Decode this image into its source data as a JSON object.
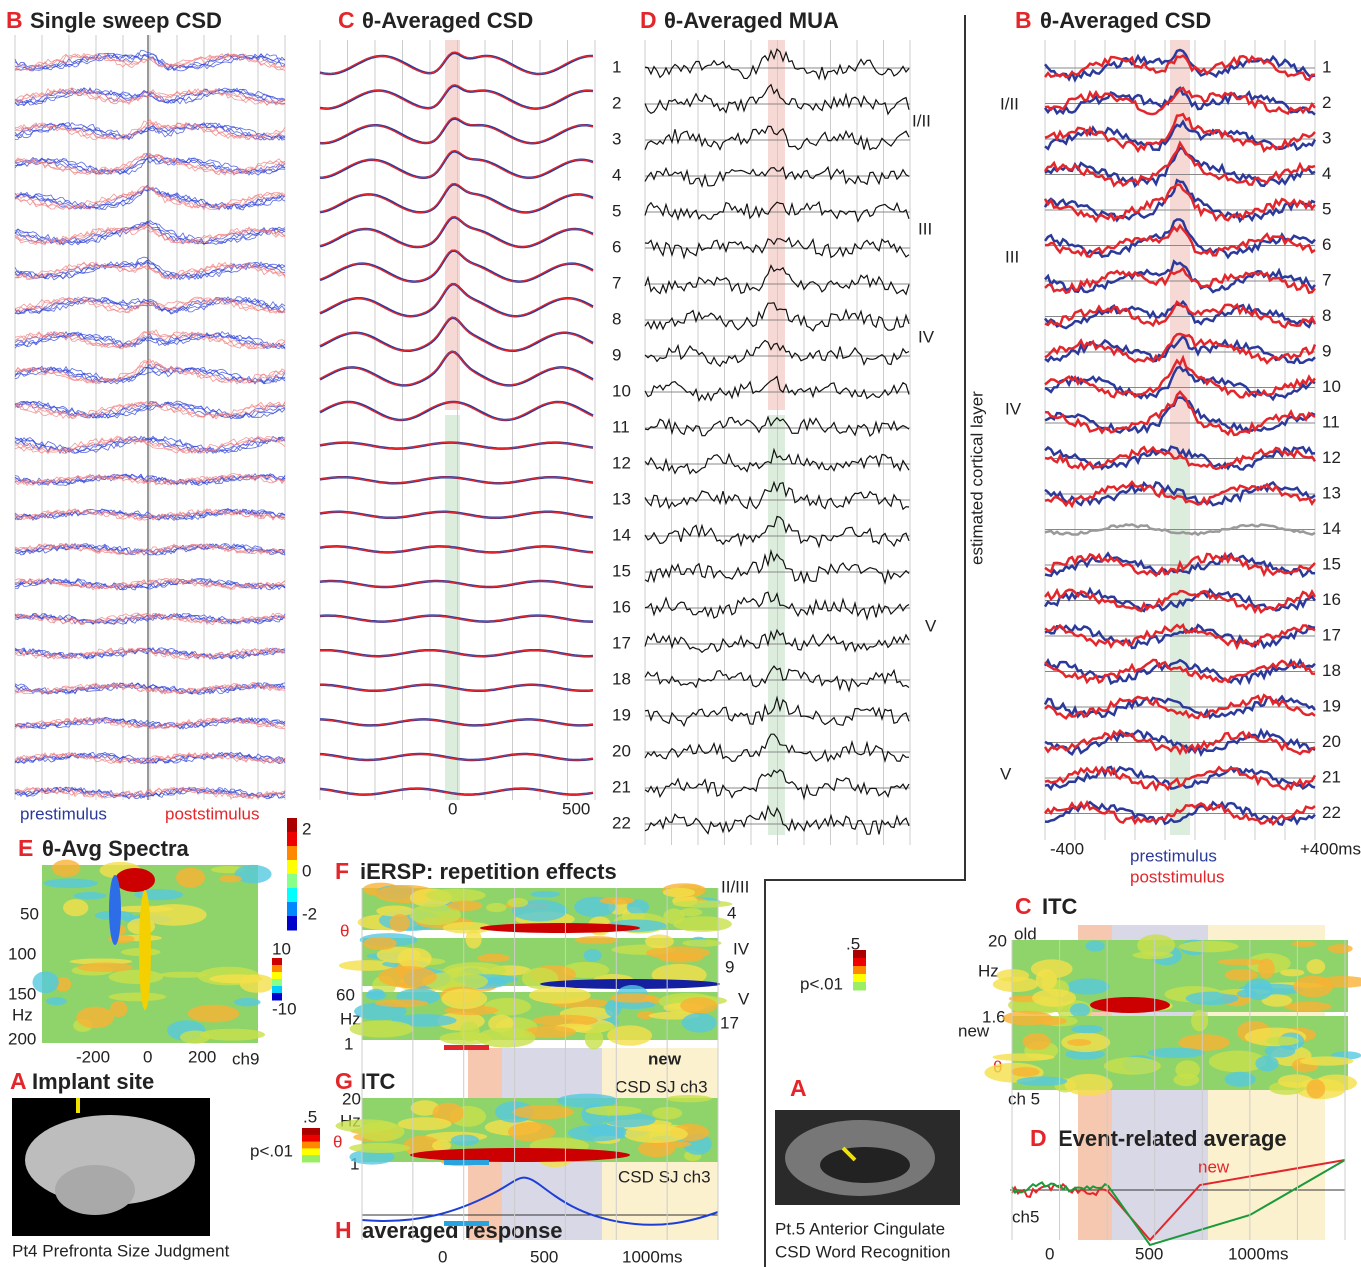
{
  "sweep": {
    "letter": "B",
    "title": "Single sweep CSD",
    "pre": "prestimulus",
    "post": "poststimulus"
  },
  "csd": {
    "letter": "C",
    "title": "θ-Averaged CSD",
    "xticks": [
      "0",
      "500"
    ]
  },
  "mua": {
    "letter": "D",
    "title": "θ-Averaged MUA",
    "channels": [
      "1",
      "2",
      "3",
      "4",
      "5",
      "6",
      "7",
      "8",
      "9",
      "10",
      "11",
      "12",
      "13",
      "14",
      "15",
      "16",
      "17",
      "18",
      "19",
      "20",
      "21",
      "22"
    ],
    "layers": [
      "I/II",
      "III",
      "IV",
      "V"
    ]
  },
  "axis_note": "estimated cortical layer",
  "csd2": {
    "letter": "B",
    "title": "θ-Averaged CSD",
    "channels": [
      "1",
      "2",
      "3",
      "4",
      "5",
      "6",
      "7",
      "8",
      "9",
      "10",
      "11",
      "12",
      "13",
      "14",
      "15",
      "16",
      "17",
      "18",
      "19",
      "20",
      "21",
      "22"
    ],
    "layers": [
      "I/II",
      "III",
      "IV",
      "V"
    ],
    "xticks": [
      "-400",
      "+400ms"
    ],
    "pre": "prestimulus",
    "post": "poststimulus"
  },
  "spectra": {
    "letter": "E",
    "title": "θ-Avg Spectra",
    "yticks": [
      "50",
      "100",
      "150",
      "Hz",
      "200"
    ],
    "xticks": [
      "-200",
      "0",
      "200",
      "ch9"
    ],
    "colorbar": [
      "2",
      "0",
      "-2"
    ]
  },
  "implant": {
    "letter": "A",
    "title": "Implant site",
    "caption": "Pt4 Prefronta Size Judgment"
  },
  "iersp": {
    "letter": "F",
    "title": "iERSP: repetition effects",
    "right": [
      "II/III",
      "4",
      "IV",
      "9",
      "V",
      "17"
    ],
    "left": [
      "θ",
      "60",
      "Hz",
      "1"
    ],
    "colorbar": [
      "10",
      "-10"
    ],
    "new": "new",
    "source": "CSD SJ ch3"
  },
  "itc": {
    "letter": "G",
    "title": "ITC",
    "left": [
      "20",
      "Hz",
      "θ",
      "1"
    ],
    "colorbar": [
      ".5",
      "p<.01"
    ],
    "source": "CSD SJ ch3"
  },
  "avg": {
    "letter": "H",
    "title": "averaged response",
    "xticks": [
      "0",
      "500",
      "1000ms"
    ]
  },
  "cingulate": {
    "letter": "A",
    "colorbar": [
      ".5",
      "p<.01"
    ],
    "caption1": "Pt.5 Anterior Cingulate",
    "caption2": "CSD Word Recognition"
  },
  "itc2": {
    "letter": "C",
    "title": "ITC",
    "labels": [
      "20",
      "old",
      "Hz",
      "1.6",
      "new",
      "θ",
      "ch 5"
    ]
  },
  "era": {
    "letter": "D",
    "title": "Event-related average",
    "new": "new",
    "channel": "ch5",
    "xticks": [
      "0",
      "500",
      "1000ms"
    ]
  }
}
